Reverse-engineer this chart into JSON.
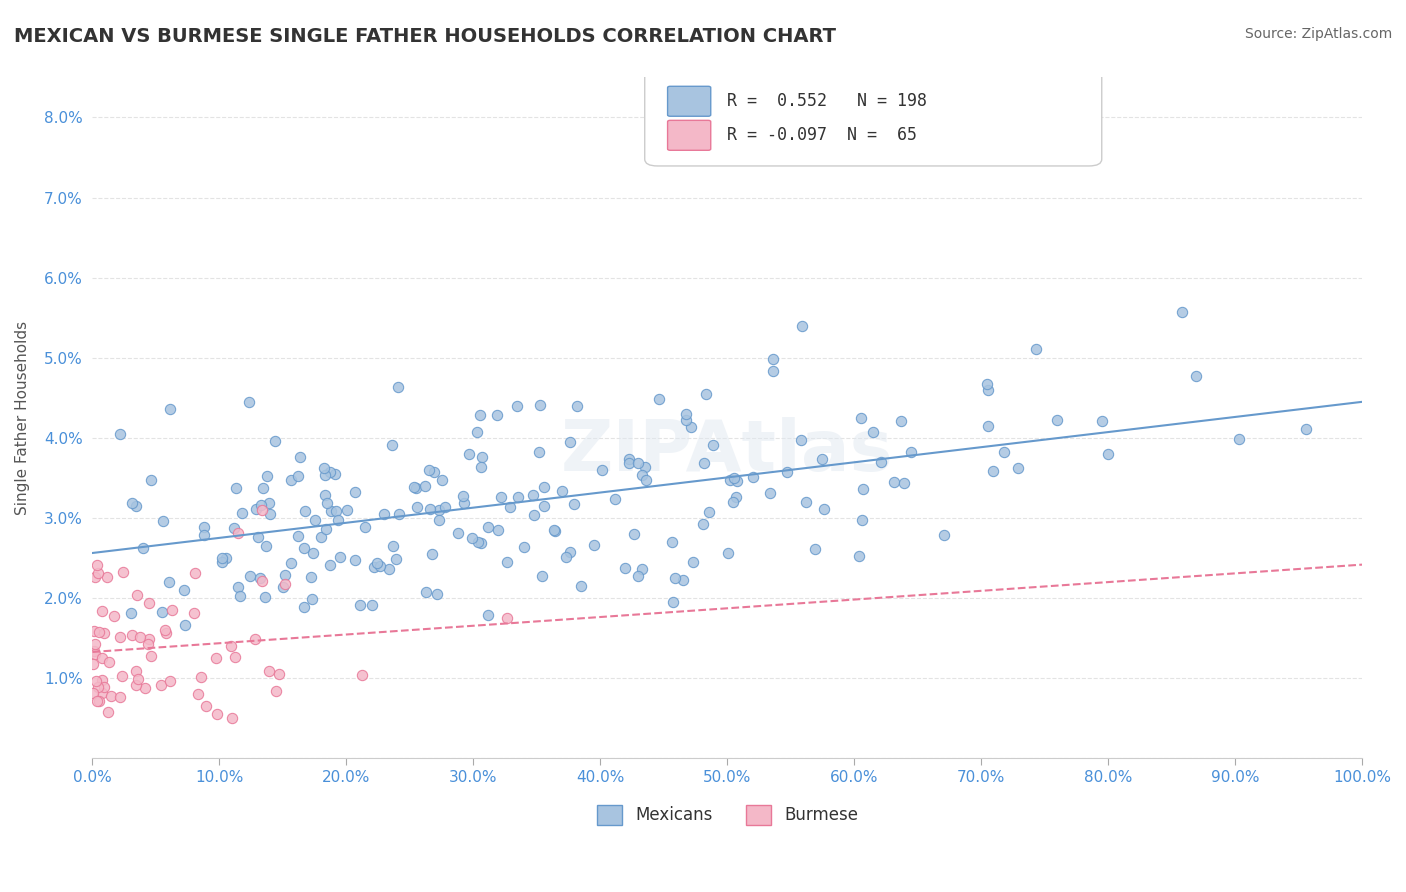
{
  "title": "MEXICAN VS BURMESE SINGLE FATHER HOUSEHOLDS CORRELATION CHART",
  "source": "Source: ZipAtlas.com",
  "ylabel": "Single Father Households",
  "xlabel": "",
  "xlim": [
    0,
    1.0
  ],
  "ylim": [
    0,
    0.085
  ],
  "xticks": [
    0.0,
    0.1,
    0.2,
    0.3,
    0.4,
    0.5,
    0.6,
    0.7,
    0.8,
    0.9,
    1.0
  ],
  "yticks": [
    0.0,
    0.01,
    0.02,
    0.03,
    0.04,
    0.05,
    0.06,
    0.07,
    0.08
  ],
  "ytick_labels": [
    "",
    "1.0%",
    "2.0%",
    "3.0%",
    "4.0%",
    "5.0%",
    "6.0%",
    "7.0%",
    "8.0%"
  ],
  "mexican_color": "#a8c4e0",
  "mexican_edge": "#6699cc",
  "burmese_color": "#f4b8c8",
  "burmese_edge": "#e87898",
  "mexican_R": 0.552,
  "mexican_N": 198,
  "burmese_R": -0.097,
  "burmese_N": 65,
  "watermark": "ZIPAtlas",
  "legend_labels": [
    "Mexicans",
    "Burmese"
  ],
  "background_color": "#ffffff",
  "grid_color": "#dddddd"
}
